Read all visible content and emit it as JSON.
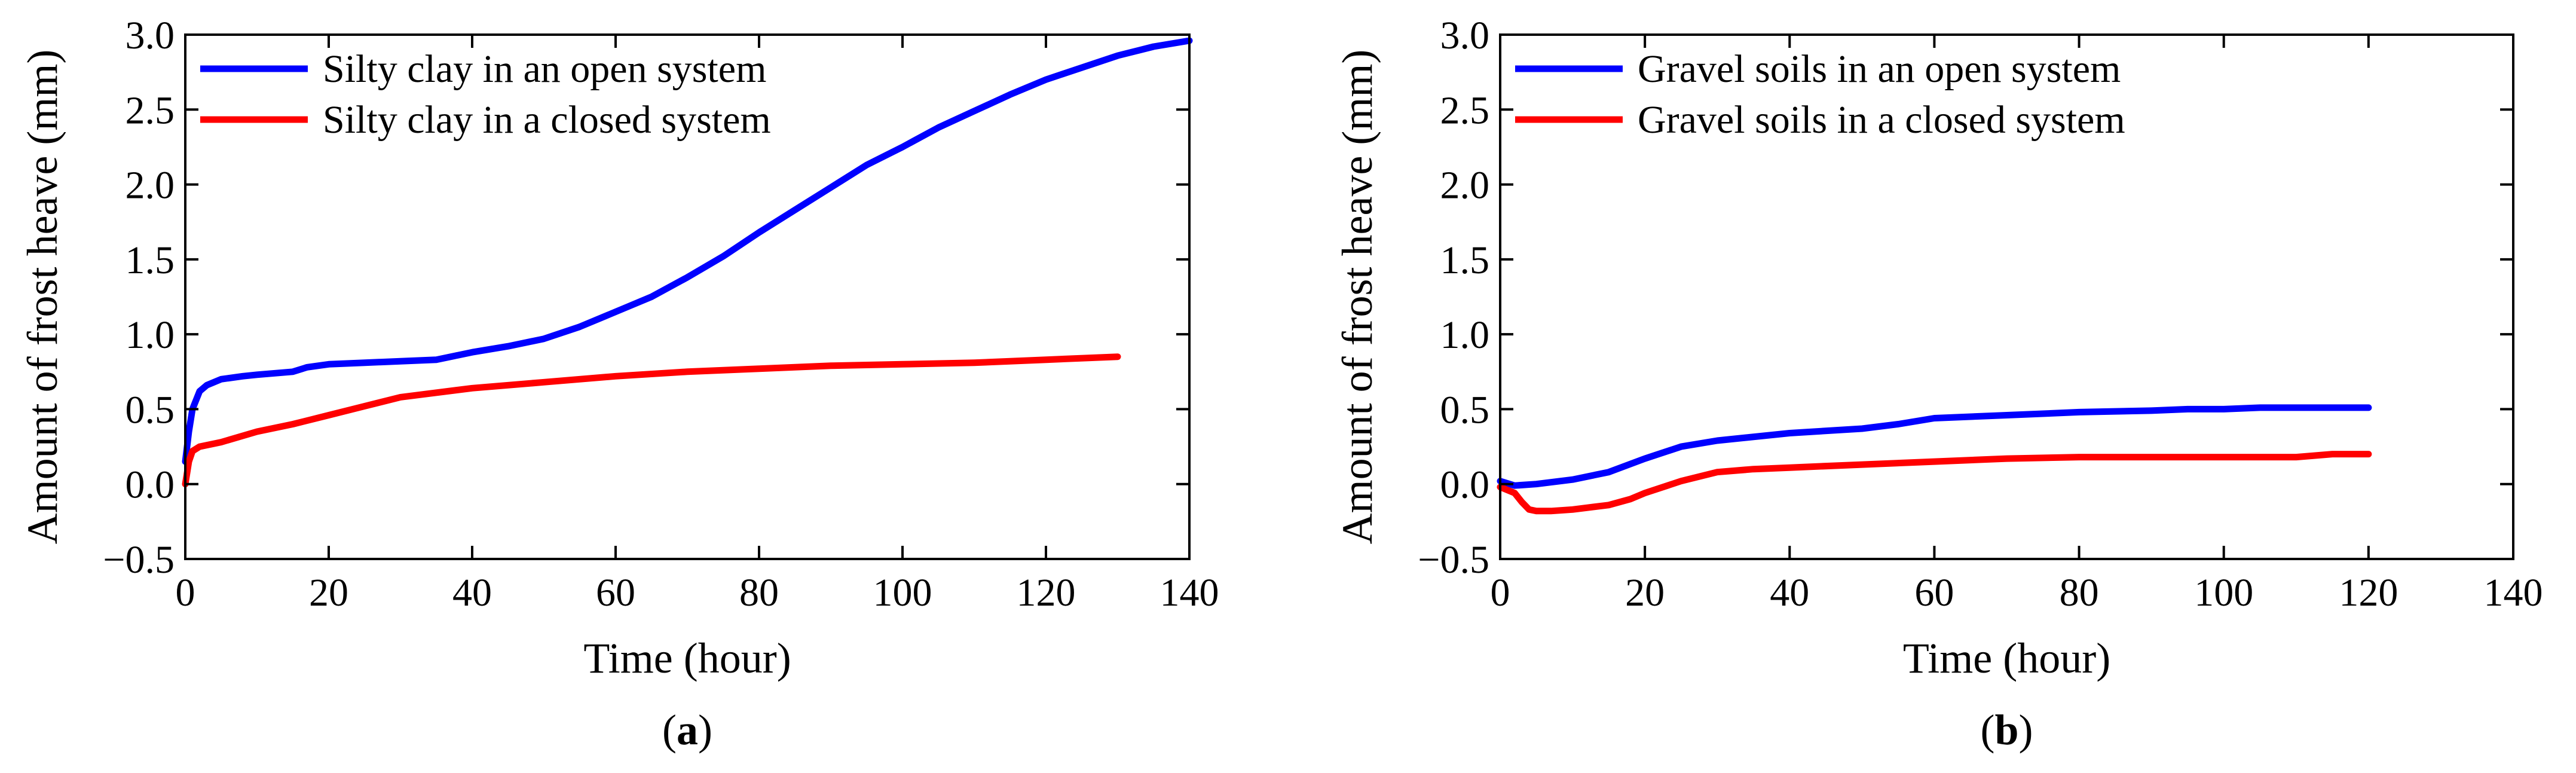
{
  "figure": {
    "background": "#ffffff",
    "axis_color": "#000000"
  },
  "chart_data": [
    {
      "id": "a",
      "type": "line",
      "caption_open": "(",
      "caption_letter": "a",
      "caption_close": ")",
      "xlabel": "Time (hour)",
      "ylabel": "Amount of frost heave (mm)",
      "xlim": [
        0,
        140
      ],
      "ylim": [
        -0.5,
        3.0
      ],
      "x_ticks": [
        0,
        20,
        40,
        60,
        80,
        100,
        120,
        140
      ],
      "x_tick_labels": [
        "0",
        "20",
        "40",
        "60",
        "80",
        "100",
        "120",
        "140"
      ],
      "y_ticks": [
        -0.5,
        0.0,
        0.5,
        1.0,
        1.5,
        2.0,
        2.5,
        3.0
      ],
      "y_tick_labels": [
        "−0.5",
        "0.0",
        "0.5",
        "1.0",
        "1.5",
        "2.0",
        "2.5",
        "3.0"
      ],
      "grid": false,
      "legend_position": "top-left",
      "series": [
        {
          "name": "Silty clay in an open system",
          "color": "#0000ff",
          "x": [
            0,
            0.5,
            1,
            2,
            3,
            5,
            8,
            10,
            15,
            17,
            20,
            25,
            30,
            35,
            38,
            40,
            45,
            50,
            55,
            60,
            65,
            70,
            75,
            80,
            85,
            90,
            95,
            100,
            105,
            110,
            115,
            120,
            125,
            130,
            135,
            140
          ],
          "y": [
            0.15,
            0.35,
            0.5,
            0.62,
            0.66,
            0.7,
            0.72,
            0.73,
            0.75,
            0.78,
            0.8,
            0.81,
            0.82,
            0.83,
            0.86,
            0.88,
            0.92,
            0.97,
            1.05,
            1.15,
            1.25,
            1.38,
            1.52,
            1.68,
            1.83,
            1.98,
            2.13,
            2.25,
            2.38,
            2.49,
            2.6,
            2.7,
            2.78,
            2.86,
            2.92,
            2.96
          ]
        },
        {
          "name": "Silty clay in a closed system",
          "color": "#ff0000",
          "x": [
            0,
            0.5,
            1,
            2,
            5,
            10,
            15,
            20,
            25,
            30,
            40,
            50,
            60,
            70,
            80,
            90,
            100,
            110,
            120,
            130
          ],
          "y": [
            0.0,
            0.15,
            0.22,
            0.25,
            0.28,
            0.35,
            0.4,
            0.46,
            0.52,
            0.58,
            0.64,
            0.68,
            0.72,
            0.75,
            0.77,
            0.79,
            0.8,
            0.81,
            0.83,
            0.85
          ]
        }
      ]
    },
    {
      "id": "b",
      "type": "line",
      "caption_open": "(",
      "caption_letter": "b",
      "caption_close": ")",
      "xlabel": "Time (hour)",
      "ylabel": "Amount of frost heave (mm)",
      "xlim": [
        0,
        140
      ],
      "ylim": [
        -0.5,
        3.0
      ],
      "x_ticks": [
        0,
        20,
        40,
        60,
        80,
        100,
        120,
        140
      ],
      "x_tick_labels": [
        "0",
        "20",
        "40",
        "60",
        "80",
        "100",
        "120",
        "140"
      ],
      "y_ticks": [
        -0.5,
        0.0,
        0.5,
        1.0,
        1.5,
        2.0,
        2.5,
        3.0
      ],
      "y_tick_labels": [
        "−0.5",
        "0.0",
        "0.5",
        "1.0",
        "1.5",
        "2.0",
        "2.5",
        "3.0"
      ],
      "grid": false,
      "legend_position": "top-left",
      "series": [
        {
          "name": "Gravel soils in an open system",
          "color": "#0000ff",
          "x": [
            0,
            2,
            5,
            10,
            15,
            20,
            25,
            30,
            40,
            50,
            55,
            60,
            70,
            80,
            90,
            95,
            100,
            105,
            110,
            120
          ],
          "y": [
            0.02,
            -0.01,
            0.0,
            0.03,
            0.08,
            0.17,
            0.25,
            0.29,
            0.34,
            0.37,
            0.4,
            0.44,
            0.46,
            0.48,
            0.49,
            0.5,
            0.5,
            0.51,
            0.51,
            0.51
          ]
        },
        {
          "name": "Gravel soils in a closed system",
          "color": "#ff0000",
          "x": [
            0,
            1,
            2,
            3,
            4,
            5,
            7,
            10,
            15,
            18,
            20,
            25,
            30,
            35,
            40,
            50,
            60,
            70,
            80,
            90,
            100,
            110,
            115,
            120
          ],
          "y": [
            -0.02,
            -0.04,
            -0.06,
            -0.12,
            -0.17,
            -0.18,
            -0.18,
            -0.17,
            -0.14,
            -0.1,
            -0.06,
            0.02,
            0.08,
            0.1,
            0.11,
            0.13,
            0.15,
            0.17,
            0.18,
            0.18,
            0.18,
            0.18,
            0.2,
            0.2
          ]
        }
      ]
    }
  ]
}
